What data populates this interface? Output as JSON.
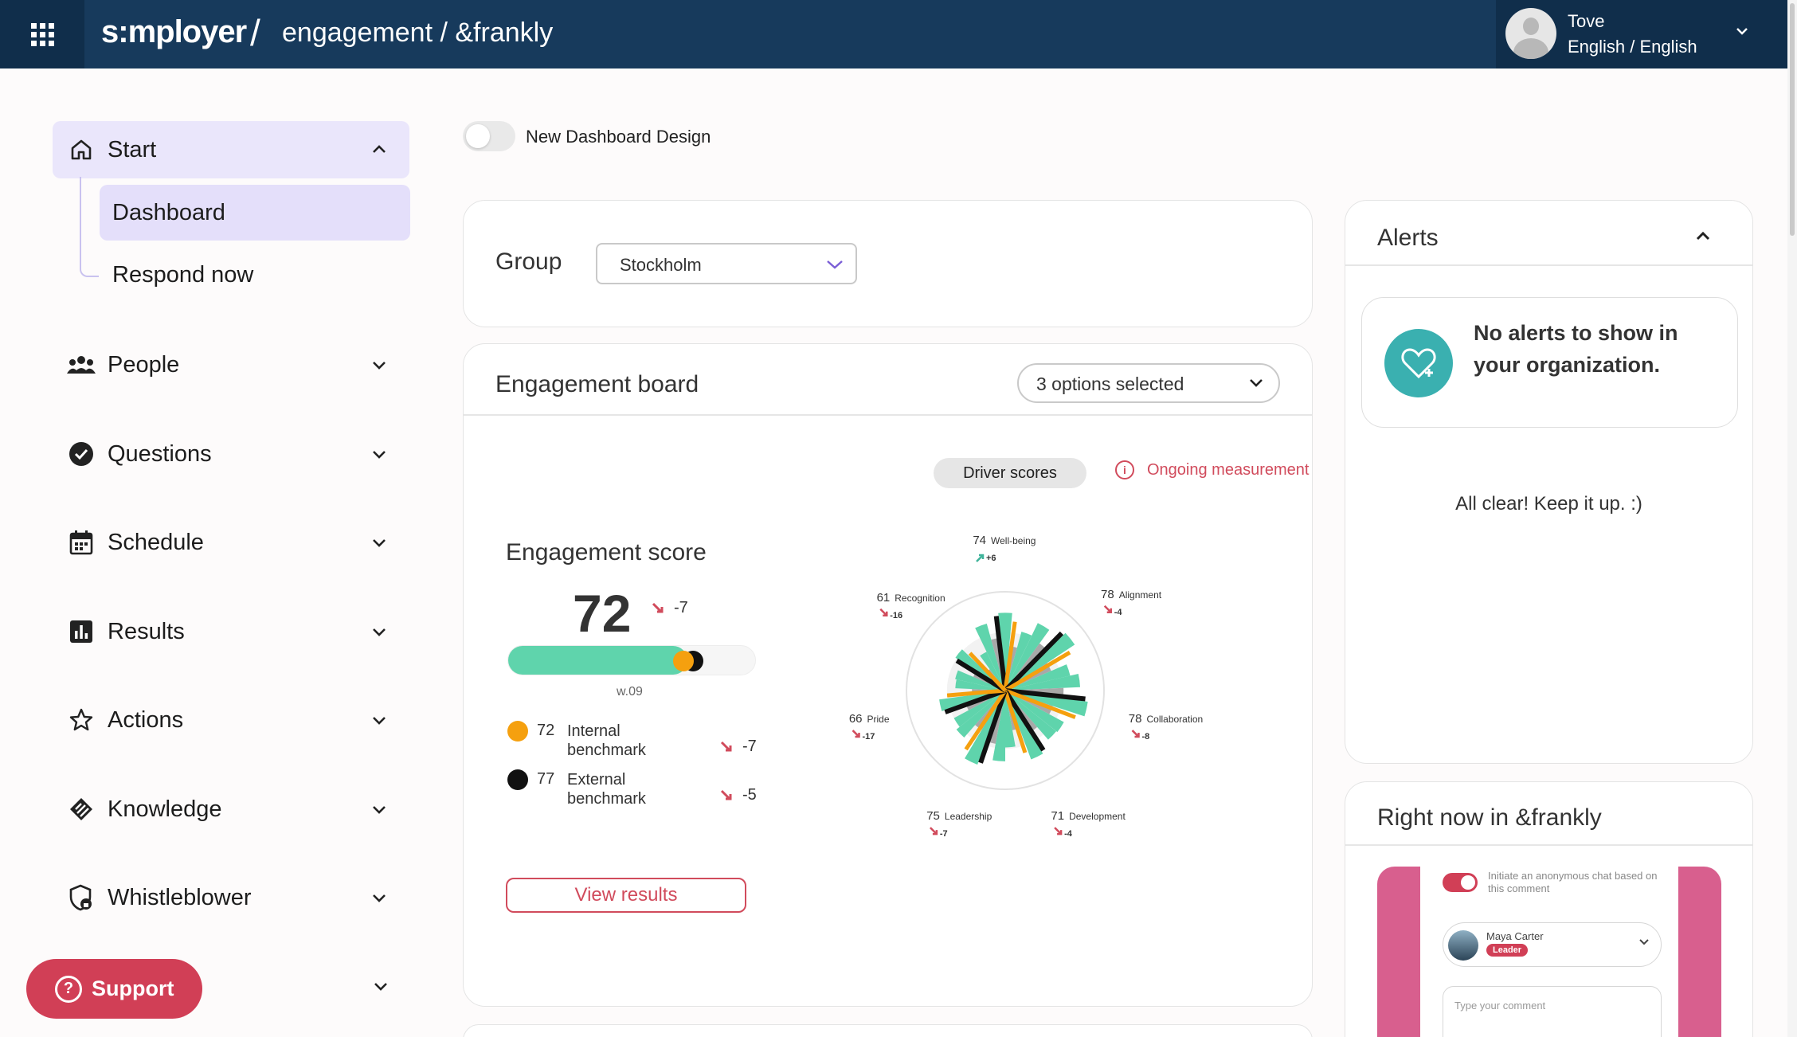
{
  "header": {
    "brand": "s:mployer",
    "separator": "/",
    "product": "engagement / &frankly",
    "user_name": "Tove",
    "user_language": "English / English"
  },
  "sidebar": {
    "items": [
      {
        "label": "Start",
        "icon": "home-icon",
        "expanded": true
      },
      {
        "label": "People",
        "icon": "people-icon"
      },
      {
        "label": "Questions",
        "icon": "check-circle-icon"
      },
      {
        "label": "Schedule",
        "icon": "calendar-icon"
      },
      {
        "label": "Results",
        "icon": "bar-chart-icon"
      },
      {
        "label": "Actions",
        "icon": "star-icon"
      },
      {
        "label": "Knowledge",
        "icon": "knowledge-icon"
      },
      {
        "label": "Whistleblower",
        "icon": "whistleblower-icon"
      }
    ],
    "subitems": [
      {
        "label": "Dashboard",
        "active": true
      },
      {
        "label": "Respond now"
      }
    ],
    "support_label": "Support"
  },
  "toggle": {
    "label": "New Dashboard Design",
    "on": false
  },
  "group": {
    "label": "Group",
    "selected": "Stockholm"
  },
  "engagement_board": {
    "title": "Engagement board",
    "filter_value": "3 options selected",
    "driver_scores_label": "Driver scores",
    "ongoing_label": "Ongoing measurement",
    "score_title": "Engagement score",
    "score": "72",
    "score_delta": "-7",
    "score_fraction": 0.72,
    "week_label": "w.09",
    "benchmarks": [
      {
        "value": "72",
        "label": "Internal benchmark",
        "delta": "-7",
        "color": "#f5a00f"
      },
      {
        "value": "77",
        "label": "External benchmark",
        "delta": "-5",
        "color": "#111111"
      }
    ],
    "view_results_label": "View results"
  },
  "chart_data": {
    "type": "radar",
    "categories": [
      "Well-being",
      "Alignment",
      "Collaboration",
      "Development",
      "Leadership",
      "Pride",
      "Recognition"
    ],
    "values": [
      74,
      78,
      78,
      71,
      75,
      66,
      61
    ],
    "deltas": [
      "+6",
      "-4",
      "-8",
      "-4",
      "-7",
      "-17",
      "-16"
    ],
    "colors": {
      "score": "#5fd4ac",
      "below": "#a8a8a8",
      "internal": "#f5a00f",
      "external": "#111111",
      "down": "#d14b5c",
      "up": "#3fb39a"
    }
  },
  "alerts": {
    "title": "Alerts",
    "message": "No alerts to show in your organization.",
    "all_clear": "All clear! Keep it up. :)"
  },
  "right_now": {
    "title": "Right now in &frankly",
    "toggle_text": "Initiate an anonymous chat based on this comment",
    "person_name": "Maya Carter",
    "person_badge": "Leader",
    "comment_placeholder": "Type your comment"
  },
  "colors": {
    "topbar": "#173a5c",
    "accent": "#d13f56",
    "active_nav": "#eae6fb",
    "teal": "#3ab0b0"
  }
}
